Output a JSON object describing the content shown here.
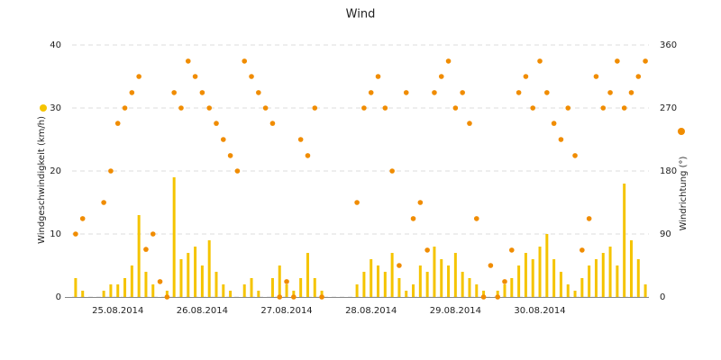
{
  "chart_data": {
    "type": "bar_scatter",
    "title": "Wind",
    "categories": [
      null,
      null,
      null,
      null,
      null,
      null,
      "25.08.2014",
      null,
      null,
      null,
      null,
      null,
      null,
      null,
      null,
      null,
      null,
      null,
      "26.08.2014",
      null,
      null,
      null,
      null,
      null,
      null,
      null,
      null,
      null,
      null,
      null,
      "27.08.2014",
      null,
      null,
      null,
      null,
      null,
      null,
      null,
      null,
      null,
      null,
      null,
      "28.08.2014",
      null,
      null,
      null,
      null,
      null,
      null,
      null,
      null,
      null,
      null,
      null,
      "29.08.2014",
      null,
      null,
      null,
      null,
      null,
      null,
      null,
      null,
      null,
      null,
      null,
      "30.08.2014",
      null,
      null,
      null,
      null,
      null,
      null,
      null,
      null,
      null,
      null,
      null,
      null,
      null,
      null,
      null
    ],
    "series": [
      {
        "name": "Windgeschwindigkeit (km/h)",
        "color": "#f5c400",
        "kind": "bar",
        "values": [
          3,
          1,
          0,
          0,
          1,
          2,
          2,
          3,
          5,
          13,
          4,
          2,
          0,
          1,
          19,
          6,
          7,
          8,
          5,
          9,
          4,
          2,
          1,
          0,
          2,
          3,
          1,
          0,
          3,
          5,
          2,
          1,
          3,
          7,
          3,
          1,
          0,
          0,
          0,
          0,
          2,
          4,
          6,
          5,
          4,
          7,
          3,
          1,
          2,
          5,
          4,
          8,
          6,
          5,
          7,
          4,
          3,
          2,
          1,
          0,
          1,
          2,
          3,
          5,
          7,
          6,
          8,
          10,
          6,
          4,
          2,
          1,
          3,
          5,
          6,
          7,
          8,
          5,
          18,
          9,
          6,
          2
        ]
      },
      {
        "name": "Windrichtung (°)",
        "color": "#f08c00",
        "kind": "scatter",
        "axis": "y2",
        "values": [
          90,
          112,
          null,
          null,
          135,
          180,
          248,
          270,
          292,
          315,
          68,
          90,
          22,
          0,
          292,
          270,
          337,
          315,
          292,
          270,
          248,
          225,
          202,
          180,
          337,
          315,
          292,
          270,
          248,
          0,
          22,
          0,
          225,
          202,
          270,
          0,
          null,
          null,
          null,
          null,
          135,
          270,
          292,
          315,
          270,
          180,
          45,
          292,
          112,
          135,
          67,
          292,
          315,
          337,
          270,
          292,
          248,
          112,
          0,
          45,
          0,
          22,
          67,
          292,
          315,
          270,
          337,
          292,
          248,
          225,
          270,
          202,
          67,
          112,
          315,
          270,
          292,
          337,
          270,
          292,
          315,
          337
        ]
      }
    ],
    "ylim": [
      0,
      40
    ],
    "yticks": [
      0,
      10,
      20,
      30,
      40
    ],
    "y2lim": [
      0,
      360
    ],
    "y2ticks": [
      0,
      90,
      180,
      270,
      360
    ],
    "grid": true
  }
}
